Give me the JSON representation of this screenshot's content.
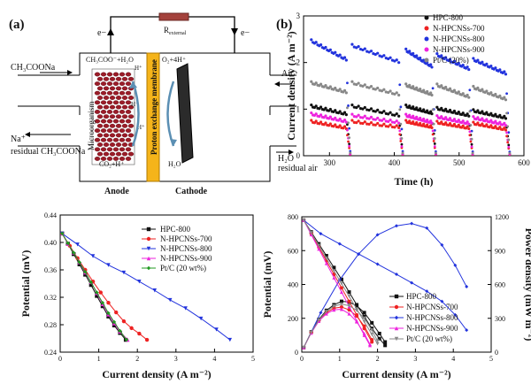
{
  "panel_a": {
    "tag": "(a)",
    "resistor_label": "R",
    "resistor_sub": "external",
    "electron": "e−",
    "in_left": "CH₃COONa",
    "out_left_1": "Na⁺",
    "out_left_2": "residual CH₃COONa",
    "in_right": "Air",
    "out_right_1": "H₂O",
    "out_right_2": "residual air",
    "reaction_anode": "CH₃COO⁻+H₂O",
    "reaction_cathode": "O₂+4H⁺",
    "co2": "CO₂+H⁺",
    "h2o": "H₂O",
    "hplus": "H⁺",
    "microorganism": "Microorganism",
    "membrane": "Proton exchange membrane",
    "anode": "Anode",
    "cathode": "Cathode"
  },
  "legend_labels": [
    "HPC-800",
    "N-HPCNSs-700",
    "N-HPCNSs-800",
    "N-HPCNSs-900",
    "Pt/C (20%)"
  ],
  "legend_labels_pct": [
    "HPC-800",
    "N-HPCNSs-700",
    "N-HPCNSs-800",
    "N-HPCNSs-900",
    "Pt/C (20 wt%)"
  ],
  "colors": {
    "HPC-800": "#111111",
    "N-HPCNSs-700": "#ee2222",
    "N-HPCNSs-800": "#2233dd",
    "N-HPCNSs-900": "#ee22dd",
    "Pt/C": "#229922",
    "gray": "#888888"
  },
  "chart_data": [
    {
      "panel": "(b)",
      "type": "scatter",
      "xlabel": "Time (h)",
      "ylabel": "Current density (A m⁻²)",
      "xlim": [
        260,
        600
      ],
      "ylim": [
        0,
        3
      ],
      "xticks": [
        300,
        400,
        500,
        600
      ],
      "yticks": [
        0,
        1,
        2,
        3
      ],
      "cycles": [
        [
          272,
          326
        ],
        [
          335,
          407
        ],
        [
          418,
          458
        ],
        [
          466,
          515
        ],
        [
          522,
          572
        ]
      ],
      "series": [
        {
          "name": "HPC-800",
          "color": "#111111",
          "levels": [
            [
              1.05,
              0.88
            ],
            [
              1.05,
              0.85
            ],
            [
              1.05,
              0.9
            ],
            [
              1.0,
              0.85
            ],
            [
              0.95,
              0.8
            ]
          ]
        },
        {
          "name": "N-HPCNSs-700",
          "color": "#ee2222",
          "levels": [
            [
              0.72,
              0.58
            ],
            [
              0.72,
              0.6
            ],
            [
              0.72,
              0.6
            ],
            [
              0.7,
              0.58
            ],
            [
              0.68,
              0.55
            ]
          ]
        },
        {
          "name": "N-HPCNSs-800",
          "color": "#2233dd",
          "levels": [
            [
              2.45,
              2.05
            ],
            [
              2.35,
              2.0
            ],
            [
              2.25,
              1.9
            ],
            [
              2.15,
              1.85
            ],
            [
              2.05,
              1.75
            ]
          ]
        },
        {
          "name": "N-HPCNSs-900",
          "color": "#ee22dd",
          "levels": [
            [
              0.88,
              0.72
            ],
            [
              0.85,
              0.7
            ],
            [
              0.85,
              0.7
            ],
            [
              0.82,
              0.68
            ],
            [
              0.8,
              0.65
            ]
          ]
        },
        {
          "name": "Pt/C (20%)",
          "color": "#888888",
          "levels": [
            [
              1.55,
              1.35
            ],
            [
              1.55,
              1.3
            ],
            [
              1.5,
              1.3
            ],
            [
              1.5,
              1.25
            ],
            [
              1.45,
              1.2
            ]
          ]
        }
      ]
    },
    {
      "panel": "polarization-left",
      "type": "line",
      "xlabel": "Current density (A m⁻²)",
      "ylabel": "Potential (mV)",
      "xlim": [
        0,
        5
      ],
      "ylim": [
        0.24,
        0.44
      ],
      "xticks": [
        0,
        1,
        2,
        3,
        4,
        5
      ],
      "yticks": [
        0.24,
        0.28,
        0.32,
        0.36,
        0.4,
        0.44
      ],
      "series": [
        {
          "name": "HPC-800",
          "color": "#111111",
          "marker": "square",
          "x": [
            0.05,
            0.2,
            0.35,
            0.5,
            0.65,
            0.8,
            0.95,
            1.1,
            1.25,
            1.4,
            1.55,
            1.7
          ],
          "y": [
            0.413,
            0.398,
            0.383,
            0.368,
            0.353,
            0.338,
            0.322,
            0.307,
            0.292,
            0.279,
            0.268,
            0.258
          ]
        },
        {
          "name": "N-HPCNSs-700",
          "color": "#ee2222",
          "marker": "circle",
          "x": [
            0.05,
            0.25,
            0.45,
            0.65,
            0.85,
            1.05,
            1.25,
            1.45,
            1.65,
            1.85,
            2.05,
            2.25
          ],
          "y": [
            0.413,
            0.395,
            0.377,
            0.36,
            0.343,
            0.327,
            0.312,
            0.298,
            0.285,
            0.275,
            0.267,
            0.258
          ]
        },
        {
          "name": "N-HPCNSs-800",
          "color": "#2233dd",
          "marker": "triangle-down",
          "x": [
            0.05,
            0.45,
            0.85,
            1.25,
            1.65,
            2.05,
            2.45,
            2.85,
            3.25,
            3.65,
            4.05,
            4.4
          ],
          "y": [
            0.413,
            0.397,
            0.38,
            0.367,
            0.356,
            0.343,
            0.33,
            0.316,
            0.304,
            0.289,
            0.273,
            0.258
          ]
        },
        {
          "name": "N-HPCNSs-900",
          "color": "#ee22dd",
          "marker": "triangle-up",
          "x": [
            0.05,
            0.2,
            0.35,
            0.5,
            0.65,
            0.8,
            0.95,
            1.1,
            1.25,
            1.4,
            1.55,
            1.75
          ],
          "y": [
            0.413,
            0.398,
            0.385,
            0.371,
            0.356,
            0.342,
            0.326,
            0.31,
            0.295,
            0.282,
            0.27,
            0.258
          ]
        },
        {
          "name": "Pt/C (20 wt%)",
          "color": "#229922",
          "marker": "diamond",
          "x": [
            0.05,
            0.2,
            0.35,
            0.5,
            0.65,
            0.8,
            0.95,
            1.1,
            1.25,
            1.4,
            1.55,
            1.72
          ],
          "y": [
            0.413,
            0.399,
            0.385,
            0.371,
            0.357,
            0.342,
            0.327,
            0.312,
            0.297,
            0.284,
            0.271,
            0.258
          ]
        }
      ]
    },
    {
      "panel": "polarization-power",
      "type": "line",
      "xlabel": "Current density (A m⁻²)",
      "ylabel": "Potential (mV)",
      "ylabel_right": "Power density (mW m⁻²)",
      "xlim": [
        0,
        5
      ],
      "ylim": [
        0,
        800
      ],
      "ylim_right": [
        0,
        1200
      ],
      "xticks": [
        0,
        1,
        2,
        3,
        4,
        5
      ],
      "yticks": [
        0,
        200,
        400,
        600,
        800
      ],
      "yticks_right": [
        0,
        300,
        600,
        900,
        1200
      ],
      "series": [
        {
          "name": "HPC-800",
          "color": "#111111",
          "marker": "square",
          "x": [
            0.05,
            0.25,
            0.45,
            0.65,
            0.85,
            1.05,
            1.25,
            1.45,
            1.65,
            1.85,
            2.05,
            2.2
          ],
          "y": [
            780,
            710,
            640,
            570,
            500,
            430,
            355,
            280,
            210,
            140,
            80,
            40
          ],
          "power": [
            40,
            180,
            290,
            370,
            420,
            450,
            445,
            410,
            350,
            260,
            165,
            90
          ]
        },
        {
          "name": "N-HPCNSs-700",
          "color": "#ee2222",
          "marker": "circle",
          "x": [
            0.05,
            0.25,
            0.45,
            0.65,
            0.85,
            1.05,
            1.25,
            1.45,
            1.65,
            1.85
          ],
          "y": [
            780,
            700,
            620,
            540,
            460,
            380,
            300,
            220,
            140,
            60
          ],
          "power": [
            40,
            175,
            280,
            350,
            390,
            400,
            375,
            320,
            230,
            110
          ]
        },
        {
          "name": "N-HPCNSs-800",
          "color": "#2233dd",
          "marker": "diamond",
          "x": [
            0.05,
            0.5,
            1.0,
            1.5,
            2.0,
            2.5,
            2.9,
            3.3,
            3.7,
            4.05,
            4.35
          ],
          "y": [
            780,
            700,
            640,
            580,
            520,
            460,
            410,
            360,
            300,
            220,
            130
          ],
          "power": [
            40,
            350,
            640,
            870,
            1040,
            1120,
            1140,
            1100,
            950,
            770,
            580
          ]
        },
        {
          "name": "N-HPCNSs-900",
          "color": "#ee22dd",
          "marker": "triangle-up",
          "x": [
            0.05,
            0.25,
            0.45,
            0.65,
            0.85,
            1.05,
            1.25,
            1.45,
            1.65,
            1.8
          ],
          "y": [
            780,
            695,
            610,
            525,
            440,
            355,
            270,
            185,
            100,
            40
          ],
          "power": [
            40,
            170,
            275,
            340,
            375,
            380,
            340,
            270,
            165,
            70
          ]
        },
        {
          "name": "Pt/C (20 wt%)",
          "color": "#888888",
          "marker": "triangle-down",
          "x": [
            0.05,
            0.25,
            0.45,
            0.65,
            0.85,
            1.05,
            1.25,
            1.45,
            1.65,
            1.85,
            2.0
          ],
          "y": [
            780,
            705,
            630,
            555,
            480,
            405,
            330,
            255,
            180,
            105,
            50
          ],
          "power": [
            40,
            176,
            284,
            360,
            408,
            425,
            412,
            370,
            300,
            195,
            100
          ]
        }
      ]
    }
  ]
}
